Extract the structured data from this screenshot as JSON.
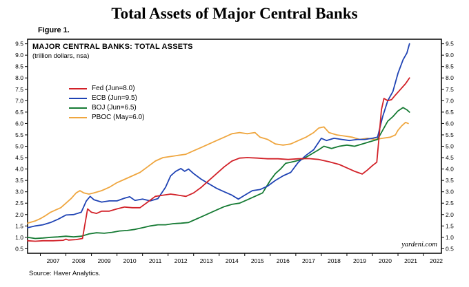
{
  "page": {
    "title": "Total Assets of Major Central Banks",
    "figure_label": "Figure 1.",
    "watermark": "yardeni.com",
    "source": "Source: Haver Analytics."
  },
  "chart_data": {
    "type": "line",
    "title": "MAJOR CENTRAL BANKS: TOTAL ASSETS",
    "subtitle": "(trillion dollars, nsa)",
    "xlabel": "",
    "ylabel": "trillion dollars",
    "grid": false,
    "legend_position": "upper-left-inside",
    "xlim": [
      2006.5,
      2022.7
    ],
    "ylim": [
      0.3,
      9.7
    ],
    "x_ticks": [
      2007,
      2008,
      2009,
      2010,
      2011,
      2012,
      2013,
      2014,
      2015,
      2016,
      2017,
      2018,
      2019,
      2020,
      2021,
      2022
    ],
    "y_ticks": [
      0.5,
      1.0,
      1.5,
      2.0,
      2.5,
      3.0,
      3.5,
      4.0,
      4.5,
      5.0,
      5.5,
      6.0,
      6.5,
      7.0,
      7.5,
      8.0,
      8.5,
      9.0,
      9.5
    ],
    "frame_color": "#000000",
    "series": [
      {
        "name": "Fed",
        "legend": "Fed (Jun=8.0)",
        "color": "#d22128",
        "points": [
          [
            2006.5,
            0.85
          ],
          [
            2006.8,
            0.83
          ],
          [
            2007.1,
            0.85
          ],
          [
            2007.5,
            0.85
          ],
          [
            2007.9,
            0.87
          ],
          [
            2008.0,
            0.92
          ],
          [
            2008.1,
            0.88
          ],
          [
            2008.4,
            0.9
          ],
          [
            2008.65,
            0.95
          ],
          [
            2008.75,
            1.6
          ],
          [
            2008.85,
            2.25
          ],
          [
            2009.0,
            2.1
          ],
          [
            2009.2,
            2.05
          ],
          [
            2009.4,
            2.15
          ],
          [
            2009.7,
            2.15
          ],
          [
            2010.0,
            2.25
          ],
          [
            2010.3,
            2.33
          ],
          [
            2010.6,
            2.3
          ],
          [
            2010.9,
            2.3
          ],
          [
            2011.2,
            2.55
          ],
          [
            2011.5,
            2.8
          ],
          [
            2011.8,
            2.85
          ],
          [
            2012.1,
            2.9
          ],
          [
            2012.4,
            2.85
          ],
          [
            2012.7,
            2.8
          ],
          [
            2013.0,
            2.95
          ],
          [
            2013.3,
            3.2
          ],
          [
            2013.6,
            3.5
          ],
          [
            2013.9,
            3.8
          ],
          [
            2014.2,
            4.1
          ],
          [
            2014.5,
            4.35
          ],
          [
            2014.8,
            4.48
          ],
          [
            2015.1,
            4.5
          ],
          [
            2015.5,
            4.48
          ],
          [
            2015.9,
            4.45
          ],
          [
            2016.3,
            4.45
          ],
          [
            2016.7,
            4.42
          ],
          [
            2017.1,
            4.45
          ],
          [
            2017.5,
            4.46
          ],
          [
            2017.9,
            4.42
          ],
          [
            2018.3,
            4.32
          ],
          [
            2018.7,
            4.2
          ],
          [
            2019.0,
            4.05
          ],
          [
            2019.3,
            3.9
          ],
          [
            2019.6,
            3.78
          ],
          [
            2019.8,
            3.95
          ],
          [
            2020.0,
            4.15
          ],
          [
            2020.17,
            4.3
          ],
          [
            2020.25,
            5.3
          ],
          [
            2020.35,
            6.6
          ],
          [
            2020.45,
            7.1
          ],
          [
            2020.6,
            7.0
          ],
          [
            2020.75,
            7.05
          ],
          [
            2020.9,
            7.25
          ],
          [
            2021.1,
            7.5
          ],
          [
            2021.3,
            7.75
          ],
          [
            2021.45,
            8.0
          ]
        ]
      },
      {
        "name": "ECB",
        "legend": "ECB (Jun=9.5)",
        "color": "#1f43b4",
        "points": [
          [
            2006.5,
            1.42
          ],
          [
            2006.8,
            1.5
          ],
          [
            2007.1,
            1.55
          ],
          [
            2007.4,
            1.65
          ],
          [
            2007.7,
            1.8
          ],
          [
            2008.0,
            1.98
          ],
          [
            2008.3,
            2.0
          ],
          [
            2008.6,
            2.1
          ],
          [
            2008.8,
            2.6
          ],
          [
            2008.95,
            2.8
          ],
          [
            2009.1,
            2.65
          ],
          [
            2009.4,
            2.55
          ],
          [
            2009.7,
            2.6
          ],
          [
            2010.0,
            2.6
          ],
          [
            2010.3,
            2.72
          ],
          [
            2010.5,
            2.78
          ],
          [
            2010.7,
            2.62
          ],
          [
            2011.0,
            2.68
          ],
          [
            2011.3,
            2.6
          ],
          [
            2011.6,
            2.7
          ],
          [
            2011.9,
            3.2
          ],
          [
            2012.1,
            3.7
          ],
          [
            2012.3,
            3.9
          ],
          [
            2012.5,
            4.02
          ],
          [
            2012.65,
            3.9
          ],
          [
            2012.8,
            4.0
          ],
          [
            2013.0,
            3.8
          ],
          [
            2013.3,
            3.55
          ],
          [
            2013.6,
            3.35
          ],
          [
            2013.9,
            3.15
          ],
          [
            2014.2,
            3.0
          ],
          [
            2014.5,
            2.85
          ],
          [
            2014.75,
            2.68
          ],
          [
            2015.0,
            2.85
          ],
          [
            2015.3,
            3.05
          ],
          [
            2015.6,
            3.1
          ],
          [
            2015.9,
            3.25
          ],
          [
            2016.2,
            3.5
          ],
          [
            2016.5,
            3.7
          ],
          [
            2016.8,
            3.85
          ],
          [
            2017.1,
            4.3
          ],
          [
            2017.4,
            4.6
          ],
          [
            2017.7,
            4.85
          ],
          [
            2018.0,
            5.35
          ],
          [
            2018.2,
            5.25
          ],
          [
            2018.5,
            5.35
          ],
          [
            2018.8,
            5.3
          ],
          [
            2019.1,
            5.25
          ],
          [
            2019.4,
            5.3
          ],
          [
            2019.7,
            5.3
          ],
          [
            2020.0,
            5.35
          ],
          [
            2020.2,
            5.4
          ],
          [
            2020.4,
            6.3
          ],
          [
            2020.6,
            7.0
          ],
          [
            2020.8,
            7.4
          ],
          [
            2021.0,
            8.2
          ],
          [
            2021.2,
            8.8
          ],
          [
            2021.35,
            9.1
          ],
          [
            2021.45,
            9.5
          ]
        ]
      },
      {
        "name": "BOJ",
        "legend": "BOJ (Jun=6.5)",
        "color": "#157a33",
        "points": [
          [
            2006.5,
            1.0
          ],
          [
            2006.8,
            0.95
          ],
          [
            2007.1,
            0.97
          ],
          [
            2007.4,
            1.0
          ],
          [
            2007.7,
            1.02
          ],
          [
            2008.0,
            1.05
          ],
          [
            2008.3,
            1.02
          ],
          [
            2008.6,
            1.05
          ],
          [
            2008.9,
            1.15
          ],
          [
            2009.2,
            1.2
          ],
          [
            2009.5,
            1.18
          ],
          [
            2009.8,
            1.22
          ],
          [
            2010.1,
            1.28
          ],
          [
            2010.4,
            1.3
          ],
          [
            2010.7,
            1.35
          ],
          [
            2011.0,
            1.42
          ],
          [
            2011.3,
            1.5
          ],
          [
            2011.6,
            1.55
          ],
          [
            2011.9,
            1.55
          ],
          [
            2012.2,
            1.6
          ],
          [
            2012.5,
            1.62
          ],
          [
            2012.8,
            1.65
          ],
          [
            2013.0,
            1.75
          ],
          [
            2013.3,
            1.9
          ],
          [
            2013.6,
            2.05
          ],
          [
            2013.9,
            2.2
          ],
          [
            2014.2,
            2.35
          ],
          [
            2014.5,
            2.45
          ],
          [
            2014.8,
            2.5
          ],
          [
            2015.1,
            2.65
          ],
          [
            2015.4,
            2.8
          ],
          [
            2015.7,
            2.95
          ],
          [
            2016.0,
            3.5
          ],
          [
            2016.2,
            3.8
          ],
          [
            2016.4,
            4.0
          ],
          [
            2016.6,
            4.25
          ],
          [
            2016.8,
            4.3
          ],
          [
            2017.0,
            4.35
          ],
          [
            2017.3,
            4.45
          ],
          [
            2017.6,
            4.65
          ],
          [
            2017.9,
            4.85
          ],
          [
            2018.1,
            5.0
          ],
          [
            2018.4,
            4.9
          ],
          [
            2018.7,
            5.0
          ],
          [
            2019.0,
            5.05
          ],
          [
            2019.3,
            5.0
          ],
          [
            2019.6,
            5.1
          ],
          [
            2019.9,
            5.2
          ],
          [
            2020.2,
            5.3
          ],
          [
            2020.4,
            5.7
          ],
          [
            2020.6,
            6.1
          ],
          [
            2020.8,
            6.3
          ],
          [
            2021.0,
            6.55
          ],
          [
            2021.2,
            6.7
          ],
          [
            2021.35,
            6.6
          ],
          [
            2021.45,
            6.5
          ]
        ]
      },
      {
        "name": "PBOC",
        "legend": "PBOC (May=6.0)",
        "color": "#efa63f",
        "points": [
          [
            2006.5,
            1.62
          ],
          [
            2006.8,
            1.72
          ],
          [
            2007.0,
            1.82
          ],
          [
            2007.2,
            1.95
          ],
          [
            2007.4,
            2.1
          ],
          [
            2007.6,
            2.2
          ],
          [
            2007.8,
            2.3
          ],
          [
            2008.0,
            2.5
          ],
          [
            2008.2,
            2.7
          ],
          [
            2008.4,
            2.95
          ],
          [
            2008.55,
            3.05
          ],
          [
            2008.7,
            2.95
          ],
          [
            2008.9,
            2.9
          ],
          [
            2009.1,
            2.95
          ],
          [
            2009.4,
            3.05
          ],
          [
            2009.7,
            3.2
          ],
          [
            2010.0,
            3.4
          ],
          [
            2010.3,
            3.55
          ],
          [
            2010.6,
            3.7
          ],
          [
            2010.9,
            3.85
          ],
          [
            2011.2,
            4.1
          ],
          [
            2011.5,
            4.35
          ],
          [
            2011.8,
            4.5
          ],
          [
            2012.1,
            4.55
          ],
          [
            2012.4,
            4.6
          ],
          [
            2012.7,
            4.65
          ],
          [
            2013.0,
            4.8
          ],
          [
            2013.3,
            4.95
          ],
          [
            2013.6,
            5.1
          ],
          [
            2013.9,
            5.25
          ],
          [
            2014.2,
            5.4
          ],
          [
            2014.5,
            5.55
          ],
          [
            2014.8,
            5.6
          ],
          [
            2015.1,
            5.55
          ],
          [
            2015.4,
            5.6
          ],
          [
            2015.6,
            5.4
          ],
          [
            2015.9,
            5.3
          ],
          [
            2016.2,
            5.1
          ],
          [
            2016.5,
            5.05
          ],
          [
            2016.8,
            5.1
          ],
          [
            2017.1,
            5.25
          ],
          [
            2017.4,
            5.4
          ],
          [
            2017.7,
            5.6
          ],
          [
            2017.9,
            5.8
          ],
          [
            2018.1,
            5.85
          ],
          [
            2018.3,
            5.6
          ],
          [
            2018.6,
            5.5
          ],
          [
            2018.9,
            5.45
          ],
          [
            2019.2,
            5.4
          ],
          [
            2019.5,
            5.3
          ],
          [
            2019.8,
            5.35
          ],
          [
            2020.1,
            5.3
          ],
          [
            2020.4,
            5.35
          ],
          [
            2020.7,
            5.4
          ],
          [
            2020.9,
            5.5
          ],
          [
            2021.0,
            5.7
          ],
          [
            2021.15,
            5.9
          ],
          [
            2021.3,
            6.05
          ],
          [
            2021.4,
            6.0
          ]
        ]
      }
    ]
  }
}
